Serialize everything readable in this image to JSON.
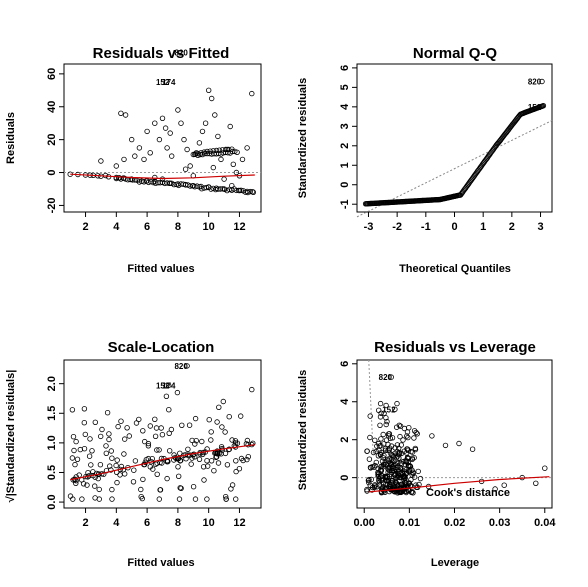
{
  "chart_data": [
    {
      "type": "scatter",
      "title": "Residuals vs Fitted",
      "xlabel": "Fitted values",
      "ylabel": "Residuals",
      "xlim": [
        0.6,
        13.4
      ],
      "ylim": [
        -24,
        66
      ],
      "xticks": [
        2,
        4,
        6,
        8,
        10,
        12
      ],
      "yticks": [
        -20,
        0,
        20,
        40,
        60
      ],
      "grid": false,
      "points": [
        [
          1,
          -1
        ],
        [
          1.5,
          -1.2
        ],
        [
          2,
          -1.5
        ],
        [
          2.3,
          -1.6
        ],
        [
          2.5,
          -1.7
        ],
        [
          2.8,
          -2
        ],
        [
          3,
          -2.2
        ],
        [
          3.3,
          -1.8
        ],
        [
          3.5,
          -2.6
        ],
        [
          4,
          -3
        ],
        [
          4.2,
          -3.2
        ],
        [
          4.5,
          -3.4
        ],
        [
          5,
          -4
        ],
        [
          5.5,
          -4.5
        ],
        [
          6,
          -5
        ],
        [
          6.5,
          -5.4
        ],
        [
          7,
          -6
        ],
        [
          7.5,
          -6.5
        ],
        [
          8,
          -7
        ],
        [
          8.5,
          -7.5
        ],
        [
          9,
          -8
        ],
        [
          9.5,
          -8.5
        ],
        [
          10,
          -9
        ],
        [
          10.5,
          -9.5
        ],
        [
          11,
          -10
        ],
        [
          11.5,
          -10.5
        ],
        [
          12,
          -11
        ],
        [
          12.5,
          -11.5
        ],
        [
          12.9,
          -12
        ],
        [
          3,
          7
        ],
        [
          4.3,
          36
        ],
        [
          4.6,
          35
        ],
        [
          4,
          4
        ],
        [
          4.5,
          8
        ],
        [
          5,
          20
        ],
        [
          5.5,
          15
        ],
        [
          5.2,
          10
        ],
        [
          5.8,
          8
        ],
        [
          6,
          25
        ],
        [
          6.2,
          12
        ],
        [
          6.5,
          30
        ],
        [
          6.8,
          20
        ],
        [
          7,
          33
        ],
        [
          7.2,
          27
        ],
        [
          7.5,
          24
        ],
        [
          7.3,
          15
        ],
        [
          7.6,
          10
        ],
        [
          8,
          38
        ],
        [
          8.2,
          30
        ],
        [
          8.4,
          20
        ],
        [
          8.6,
          14
        ],
        [
          8.8,
          4
        ],
        [
          9,
          -2
        ],
        [
          9.2,
          12
        ],
        [
          9.4,
          18
        ],
        [
          9.6,
          25
        ],
        [
          9.8,
          30
        ],
        [
          10,
          50
        ],
        [
          10.2,
          45
        ],
        [
          10.4,
          35
        ],
        [
          10.6,
          22
        ],
        [
          10.8,
          8
        ],
        [
          11,
          -4
        ],
        [
          11.2,
          14
        ],
        [
          11.4,
          28
        ],
        [
          11.6,
          5
        ],
        [
          11.8,
          0
        ],
        [
          12,
          -2
        ],
        [
          12.2,
          8
        ],
        [
          12.5,
          15
        ],
        [
          12.8,
          48
        ],
        [
          9.1,
          11
        ],
        [
          9.3,
          11.5
        ],
        [
          9.5,
          12
        ],
        [
          9.7,
          12.4
        ],
        [
          9.9,
          12.8
        ],
        [
          10.1,
          13
        ],
        [
          10.3,
          13.2
        ],
        [
          10.5,
          13.4
        ],
        [
          10.7,
          13.6
        ],
        [
          10.9,
          13.8
        ],
        [
          11.1,
          14
        ],
        [
          11.3,
          14
        ],
        [
          11.5,
          14.2
        ],
        [
          6.5,
          -3
        ],
        [
          7,
          -4
        ],
        [
          8.5,
          2
        ],
        [
          10.3,
          3
        ],
        [
          11.5,
          -8
        ]
      ],
      "smoother": [
        [
          1,
          -1
        ],
        [
          3,
          -2
        ],
        [
          5,
          -3
        ],
        [
          7,
          -3.6
        ],
        [
          9,
          -3.2
        ],
        [
          11,
          -2.2
        ],
        [
          13,
          -1.5
        ]
      ],
      "annotations": [
        {
          "label": "820",
          "x": 8.6,
          "y": 73
        },
        {
          "label": "152",
          "x": 7.4,
          "y": 55
        },
        {
          "label": "174",
          "x": 7.8,
          "y": 55
        }
      ]
    },
    {
      "type": "scatter",
      "title": "Normal Q-Q",
      "xlabel": "Theoretical Quantiles",
      "ylabel": "Standardized residuals",
      "xlim": [
        -3.4,
        3.4
      ],
      "ylim": [
        -1.4,
        6.2
      ],
      "xticks": [
        -3,
        -2,
        -1,
        0,
        1,
        2,
        3
      ],
      "yticks": [
        -1,
        0,
        1,
        2,
        3,
        4,
        5,
        6
      ],
      "grid": false,
      "reference_line": [
        [
          -3.4,
          -1.65
        ],
        [
          3.4,
          3.3
        ]
      ],
      "annotations": [
        {
          "label": "820",
          "x": 3.0,
          "y": 5.3
        },
        {
          "label": "152",
          "x": 3.0,
          "y": 4.0
        }
      ]
    },
    {
      "type": "scatter",
      "title": "Scale-Location",
      "xlabel": "Fitted values",
      "ylabel": "√|Standardized residuals|",
      "xlim": [
        0.6,
        13.4
      ],
      "ylim": [
        -0.1,
        2.4
      ],
      "xticks": [
        2,
        4,
        6,
        8,
        10,
        12
      ],
      "yticks": [
        0.0,
        0.5,
        1.0,
        1.5,
        2.0
      ],
      "grid": false,
      "smoother": [
        [
          1,
          0.38
        ],
        [
          3,
          0.48
        ],
        [
          5,
          0.6
        ],
        [
          7,
          0.72
        ],
        [
          9,
          0.82
        ],
        [
          11,
          0.9
        ],
        [
          13,
          0.97
        ]
      ],
      "annotations": [
        {
          "label": "820",
          "x": 8.6,
          "y": 2.3
        },
        {
          "label": "152",
          "x": 7.4,
          "y": 1.97
        },
        {
          "label": "174",
          "x": 7.8,
          "y": 1.97
        }
      ]
    },
    {
      "type": "scatter",
      "title": "Residuals vs Leverage",
      "xlabel": "Leverage",
      "ylabel": "Standardized residuals",
      "xlim": [
        -0.0016,
        0.0416
      ],
      "ylim": [
        -1.6,
        6.2
      ],
      "xticks": [
        0.0,
        0.01,
        0.02,
        0.03,
        0.04
      ],
      "xtick_labels": [
        "0.00",
        "0.01",
        "0.02",
        "0.03",
        "0.04"
      ],
      "yticks": [
        0,
        2,
        4,
        6
      ],
      "grid": false,
      "smoother": [
        [
          0.001,
          -0.75
        ],
        [
          0.01,
          -0.55
        ],
        [
          0.02,
          -0.3
        ],
        [
          0.03,
          -0.1
        ],
        [
          0.041,
          0.05
        ]
      ],
      "annotations": [
        {
          "label": "820",
          "x": 0.006,
          "y": 5.3
        },
        {
          "label": "152",
          "x": 0.0068,
          "y": 3.6
        }
      ],
      "legend": "Cook's distance"
    }
  ]
}
